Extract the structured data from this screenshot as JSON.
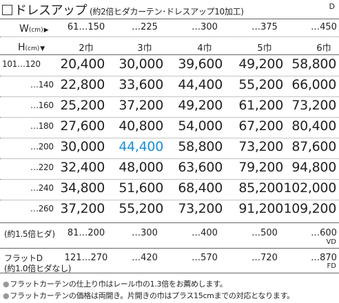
{
  "title": "ドレスアップ",
  "subtitle": "(約2倍ヒダカーテン･ドレスアップ10加工)",
  "code": "D",
  "width_header": {
    "label": "W",
    "unit": "(cm)",
    "arrow": "▶"
  },
  "height_header": {
    "label": "H",
    "unit": "(cm)",
    "arrow": "▼"
  },
  "width_ranges": [
    "61…150",
    "…225",
    "…300",
    "…375",
    "…450"
  ],
  "panel_counts": [
    "2巾",
    "3巾",
    "4巾",
    "5巾",
    "6巾"
  ],
  "rows": [
    {
      "height": "101…120",
      "prices": [
        "20,400",
        "30,000",
        "39,600",
        "49,200",
        "58,800"
      ]
    },
    {
      "height": "…140",
      "prices": [
        "22,800",
        "33,600",
        "44,400",
        "55,200",
        "66,000"
      ]
    },
    {
      "height": "…160",
      "prices": [
        "25,200",
        "37,200",
        "49,200",
        "61,200",
        "73,200"
      ]
    },
    {
      "height": "…180",
      "prices": [
        "27,600",
        "40,800",
        "54,000",
        "67,200",
        "80,400"
      ]
    },
    {
      "height": "…200",
      "prices": [
        "30,000",
        "44,400",
        "58,800",
        "73,200",
        "87,600"
      ]
    },
    {
      "height": "…220",
      "prices": [
        "32,400",
        "48,000",
        "63,600",
        "79,200",
        "94,800"
      ]
    },
    {
      "height": "…240",
      "prices": [
        "34,800",
        "51,600",
        "68,400",
        "85,200",
        "102,000"
      ]
    },
    {
      "height": "…260",
      "prices": [
        "37,200",
        "55,200",
        "73,200",
        "91,200",
        "109,200"
      ]
    }
  ],
  "highlight_color": "#1a8fd6",
  "vd_row": {
    "label": "(約1.5倍ヒダ)",
    "values": [
      "81…200",
      "…300",
      "…400",
      "…500",
      "…600"
    ],
    "code": "VD"
  },
  "fd_row": {
    "label_line1": "フラットD",
    "label_line2": "(約1.0倍ヒダなし)",
    "values": [
      "121…270",
      "…420",
      "…570",
      "…720",
      "…870"
    ],
    "code": "FD"
  },
  "notes": [
    "フラットカーテンの仕上り巾はレール巾の1.3倍をお薦めします。",
    "フラットカーテンの価格は両開き。片開きの巾はプラス15cmまでの対応となります。"
  ]
}
